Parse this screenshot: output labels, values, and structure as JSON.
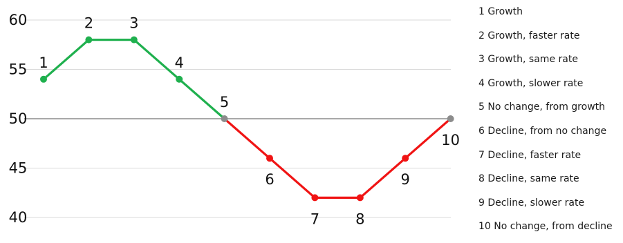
{
  "chart_data": {
    "type": "line",
    "title": "",
    "xlabel": "",
    "ylabel": "",
    "ylim": [
      40,
      60
    ],
    "yticks": [
      40,
      45,
      50,
      55,
      60
    ],
    "grid": true,
    "reference_line": 50,
    "legend_position": "right",
    "x": [
      1,
      2,
      3,
      4,
      5,
      6,
      7,
      8,
      9,
      10
    ],
    "values": [
      54,
      58,
      58,
      54,
      50,
      46,
      42,
      42,
      46,
      50
    ],
    "point_labels": [
      "1",
      "2",
      "3",
      "4",
      "5",
      "6",
      "7",
      "8",
      "9",
      "10"
    ],
    "segment_colors": {
      "growth": "#1fb04e",
      "decline": "#f01414",
      "no_change": "#8c8c8c",
      "gridline": "#d9d9d9",
      "reference_line": "#8c8c8c"
    },
    "legend": [
      "1 Growth",
      "2 Growth, faster rate",
      "3 Growth, same rate",
      "4 Growth, slower rate",
      "5 No change, from growth",
      "6 Decline, from no change",
      "7 Decline, faster rate",
      "8 Decline, same rate",
      "9 Decline, slower rate",
      "10 No change, from decline"
    ]
  }
}
